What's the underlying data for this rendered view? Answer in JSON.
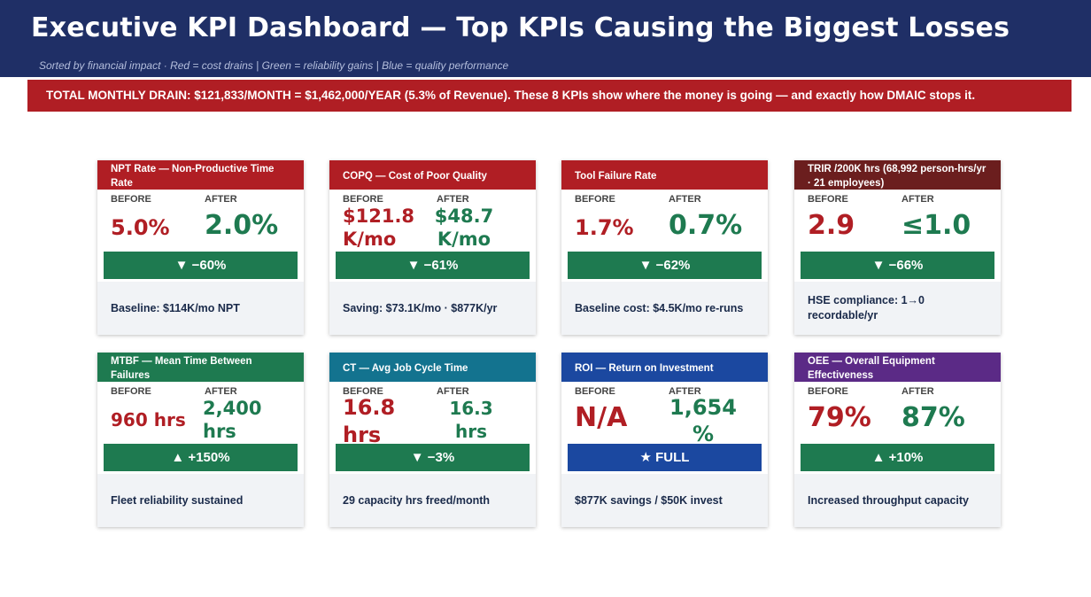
{
  "header": {
    "title": "Executive KPI Dashboard — Top KPIs Causing the Biggest Losses",
    "subtitle": "Sorted by financial impact  ·  Red = cost drains  |  Green = reliability gains  |  Blue = quality performance"
  },
  "alert": {
    "text": "TOTAL MONTHLY DRAIN: $121,833/MONTH = $1,462,000/YEAR (5.3% of Revenue).  These 8 KPIs show where the money is going — and exactly how DMAIC stops it."
  },
  "colors": {
    "header_bg": "#1f2f66",
    "alert_red": "#b01e24",
    "before_red": "#b01e24",
    "after_green": "#1e7a50",
    "banner_green": "#1e7a50",
    "banner_blue": "#1b48a0"
  },
  "labels": {
    "before": "BEFORE",
    "after": "AFTER"
  },
  "cards": [
    {
      "title": "NPT Rate  —  Non-Productive Time Rate",
      "header_color": "#b01e24",
      "before": "5.0%",
      "after": "2.0%",
      "change": "▼ −60%",
      "banner_color": "#1e7a50",
      "footer": "Baseline: $114K/mo NPT"
    },
    {
      "title": "COPQ  —  Cost of Poor Quality",
      "header_color": "#b01e24",
      "before": "$121.8 K/mo",
      "after": "$48.7 K/mo",
      "change": "▼ −61%",
      "banner_color": "#1e7a50",
      "footer": "Saving: $73.1K/mo · $877K/yr"
    },
    {
      "title": "Tool Failure Rate",
      "header_color": "#b01e24",
      "before": "1.7%",
      "after": "0.7%",
      "change": "▼ −62%",
      "banner_color": "#1e7a50",
      "footer": "Baseline cost: $4.5K/mo re-runs"
    },
    {
      "title": "TRIR /200K hrs  (68,992 person-hrs/yr · 21 employees)",
      "header_color": "#6b1e1e",
      "before": "2.9",
      "after": "≤1.0",
      "change": "▼ −66%",
      "banner_color": "#1e7a50",
      "footer": "HSE compliance: 1→0 recordable/yr"
    },
    {
      "title": "MTBF  —  Mean Time Between Failures",
      "header_color": "#1e7a50",
      "before": "960 hrs",
      "after": "2,400 hrs",
      "change": "▲ +150%",
      "banner_color": "#1e7a50",
      "footer": "Fleet reliability sustained"
    },
    {
      "title": "CT  —  Avg Job Cycle Time",
      "header_color": "#13738f",
      "before": "16.8 hrs",
      "after": "16.3 hrs",
      "change": "▼ −3%",
      "banner_color": "#1e7a50",
      "footer": "29 capacity hrs freed/month"
    },
    {
      "title": "ROI  —  Return on Investment",
      "header_color": "#1b48a0",
      "before": "N/A",
      "after": "1,654 %",
      "change": "★ FULL",
      "banner_color": "#1b48a0",
      "footer": "$877K savings / $50K invest"
    },
    {
      "title": "OEE  —  Overall Equipment Effectiveness",
      "header_color": "#5b2a86",
      "before": "79%",
      "after": "87%",
      "change": "▲ +10%",
      "banner_color": "#1e7a50",
      "footer": "Increased throughput capacity"
    }
  ]
}
